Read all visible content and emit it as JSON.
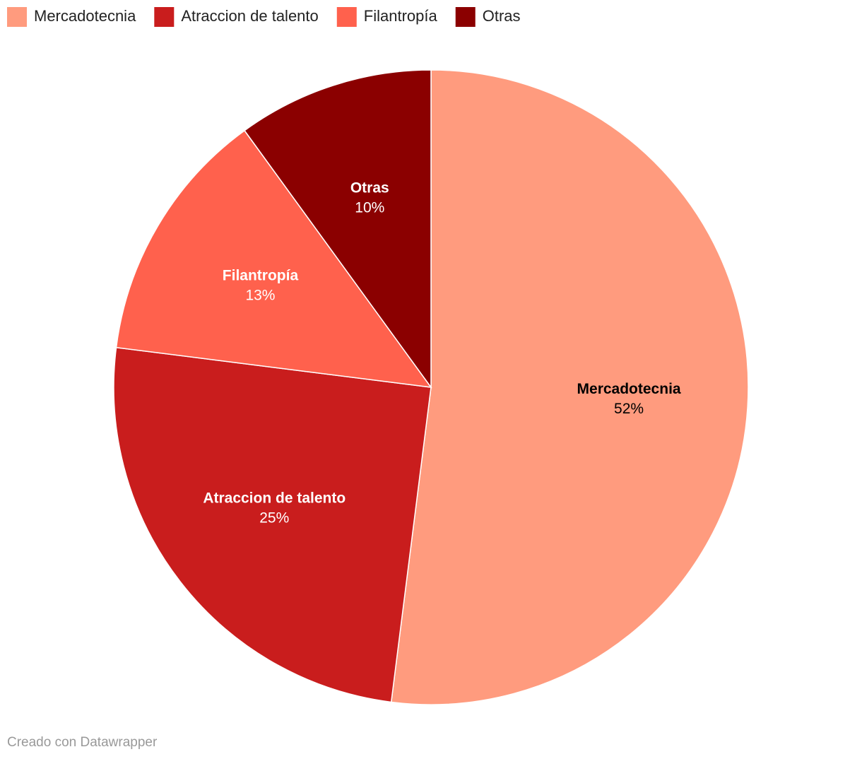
{
  "chart_data": {
    "type": "pie",
    "categories": [
      "Mercadotecnia",
      "Atraccion de talento",
      "Filantropía",
      "Otras"
    ],
    "values": [
      52,
      25,
      13,
      10
    ],
    "value_labels": [
      "52%",
      "25%",
      "13%",
      "10%"
    ],
    "colors": [
      "#ff9b7e",
      "#c91d1d",
      "#ff614d",
      "#8b0000"
    ],
    "legend": "top-left",
    "credit": "Creado con Datawrapper"
  }
}
